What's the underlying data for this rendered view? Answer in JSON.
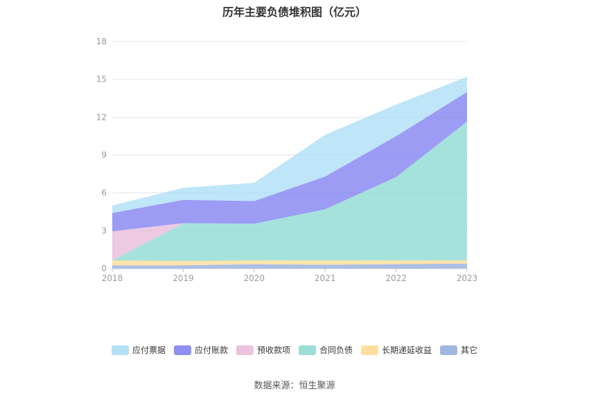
{
  "chart_data": {
    "type": "area",
    "stacked": true,
    "title": "历年主要负债堆积图（亿元）",
    "categories": [
      "2018",
      "2019",
      "2020",
      "2021",
      "2022",
      "2023"
    ],
    "ylim": [
      0,
      18
    ],
    "yticks": [
      0,
      3,
      6,
      9,
      12,
      15,
      18
    ],
    "grid": true,
    "legend_position": "bottom",
    "series": [
      {
        "name": "其它",
        "color": "#8faadc",
        "values": [
          0.25,
          0.25,
          0.35,
          0.3,
          0.35,
          0.4
        ]
      },
      {
        "name": "长期递延收益",
        "color": "#ffd98e",
        "values": [
          0.4,
          0.35,
          0.3,
          0.35,
          0.3,
          0.25
        ]
      },
      {
        "name": "合同负债",
        "color": "#88d8d0",
        "values": [
          0.0,
          3.0,
          2.9,
          4.05,
          6.6,
          11.0
        ]
      },
      {
        "name": "预收款项",
        "color": "#e8b8d8",
        "values": [
          2.3,
          0.0,
          0.0,
          0.0,
          0.0,
          0.0
        ]
      },
      {
        "name": "应付账款",
        "color": "#7b7bf0",
        "values": [
          1.45,
          1.85,
          1.8,
          2.6,
          3.25,
          2.35
        ]
      },
      {
        "name": "应付票据",
        "color": "#a8dcf5",
        "values": [
          0.6,
          0.95,
          1.45,
          3.3,
          2.5,
          1.2
        ]
      }
    ]
  },
  "legend_order": [
    "应付票据",
    "应付账款",
    "预收款项",
    "合同负债",
    "长期递延收益",
    "其它"
  ],
  "source_text": "数据来源：恒生聚源"
}
